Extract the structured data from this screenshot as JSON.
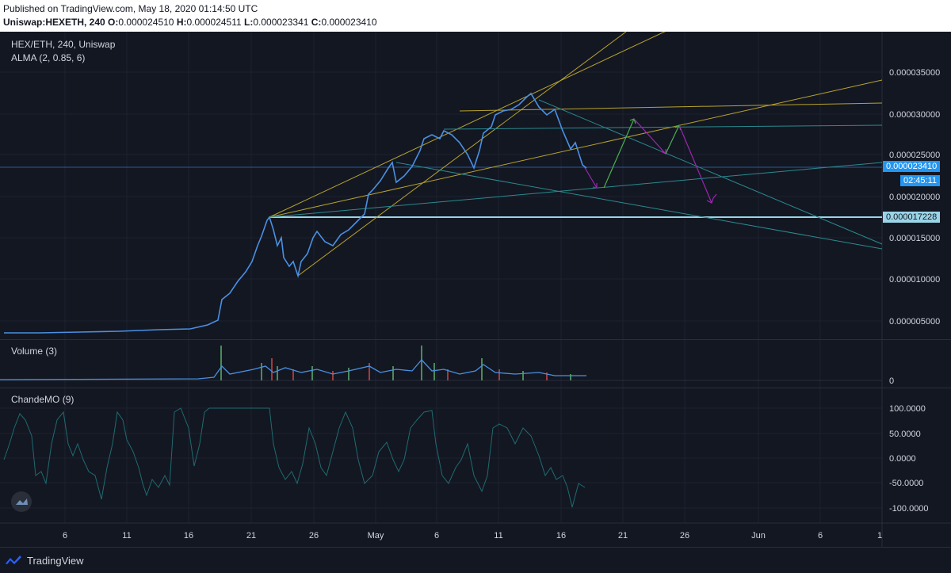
{
  "header": {
    "published": "Published on TradingView.com, May 18, 2020 01:14:50 UTC",
    "symbol": "Uniswap:HEXETH, 240",
    "o_label": "O:",
    "o_value": "0.000024510",
    "h_label": "H:",
    "h_value": "0.000024511",
    "l_label": "L:",
    "l_value": "0.000023341",
    "c_label": "C:",
    "c_value": "0.000023410"
  },
  "main_pane": {
    "title": "HEX/ETH, 240, Uniswap",
    "indicator": "ALMA (2, 0.85, 6)",
    "price_axis": [
      "0.000035000",
      "0.000030000",
      "0.000025000",
      "0.000020000",
      "0.000015000",
      "0.000010000",
      "0.000005000"
    ],
    "last_price": "0.000023410",
    "countdown": "02:45:11",
    "support_price": "0.000017228",
    "colors": {
      "price_line": "#4a90e2",
      "last_price_bg": "#2196f3",
      "support_bg": "#9ad4e6",
      "trend_yellow": "#b8a22d",
      "trend_teal": "#2a8a8f",
      "arrow_green": "#4caf50",
      "arrow_purple": "#9c27b0"
    }
  },
  "volume_pane": {
    "title": "Volume (3)",
    "axis_zero": "0"
  },
  "cmo_pane": {
    "title": "ChandeMO (9)",
    "axis": [
      "100.0000",
      "50.0000",
      "0.0000",
      "-50.0000",
      "-100.0000"
    ]
  },
  "time_axis": [
    "6",
    "11",
    "16",
    "21",
    "26",
    "May",
    "6",
    "11",
    "16",
    "21",
    "26",
    "Jun",
    "6",
    "1"
  ],
  "footer": {
    "brand": "TradingView",
    "logo_icon": "tradingview-logo-icon"
  }
}
